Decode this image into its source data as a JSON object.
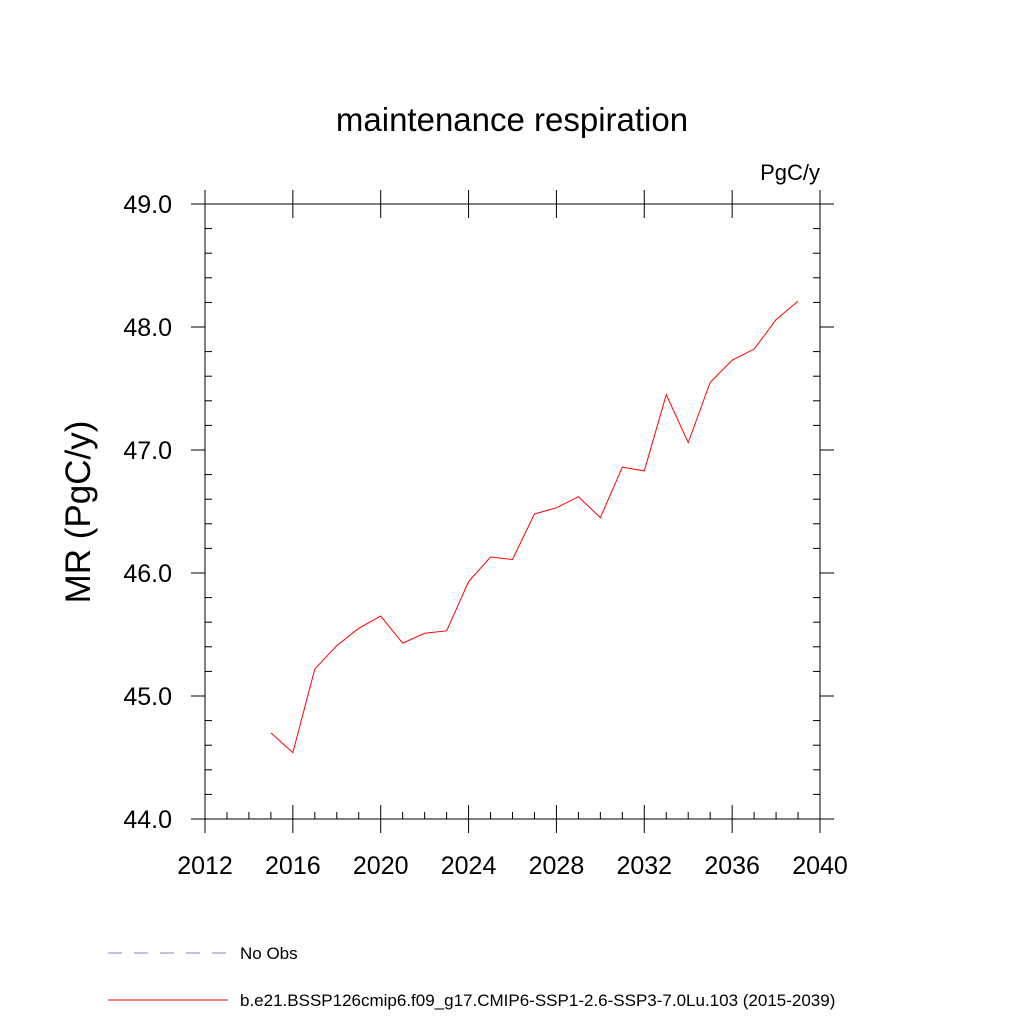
{
  "chart_data": {
    "type": "line",
    "title": "maintenance respiration",
    "units_label": "PgC/y",
    "ylabel": "MR  (PgC/y)",
    "xlabel": "",
    "xlim": [
      2012,
      2040
    ],
    "ylim": [
      44.0,
      49.0
    ],
    "x_ticks": [
      2012,
      2016,
      2020,
      2024,
      2028,
      2032,
      2036,
      2040
    ],
    "x_tick_labels": [
      "2012",
      "2016",
      "2020",
      "2024",
      "2028",
      "2032",
      "2036",
      "2040"
    ],
    "y_ticks": [
      44.0,
      45.0,
      46.0,
      47.0,
      48.0,
      49.0
    ],
    "y_tick_labels": [
      "44.0",
      "45.0",
      "46.0",
      "47.0",
      "48.0",
      "49.0"
    ],
    "series": [
      {
        "name": "b.e21.BSSP126cmip6.f09_g17.CMIP6-SSP1-2.6-SSP3-7.0Lu.103 (2015-2039)",
        "color": "#ff0000",
        "x": [
          2015,
          2016,
          2017,
          2018,
          2019,
          2020,
          2021,
          2022,
          2023,
          2024,
          2025,
          2026,
          2027,
          2028,
          2029,
          2030,
          2031,
          2032,
          2033,
          2034,
          2035,
          2036,
          2037,
          2038,
          2039
        ],
        "y": [
          44.7,
          44.54,
          45.22,
          45.41,
          45.55,
          45.65,
          45.43,
          45.51,
          45.53,
          45.93,
          46.13,
          46.11,
          46.48,
          46.53,
          46.62,
          46.45,
          46.86,
          46.83,
          47.45,
          47.06,
          47.55,
          47.73,
          47.82,
          48.06,
          48.21
        ]
      }
    ],
    "legend": {
      "placement": "bottom-left",
      "entries": [
        {
          "label": "No Obs",
          "color": "#8080c0",
          "style": "dashed"
        },
        {
          "label": "b.e21.BSSP126cmip6.f09_g17.CMIP6-SSP1-2.6-SSP3-7.0Lu.103 (2015-2039)",
          "color": "#ff0000",
          "style": "solid"
        }
      ]
    },
    "grid": false
  }
}
